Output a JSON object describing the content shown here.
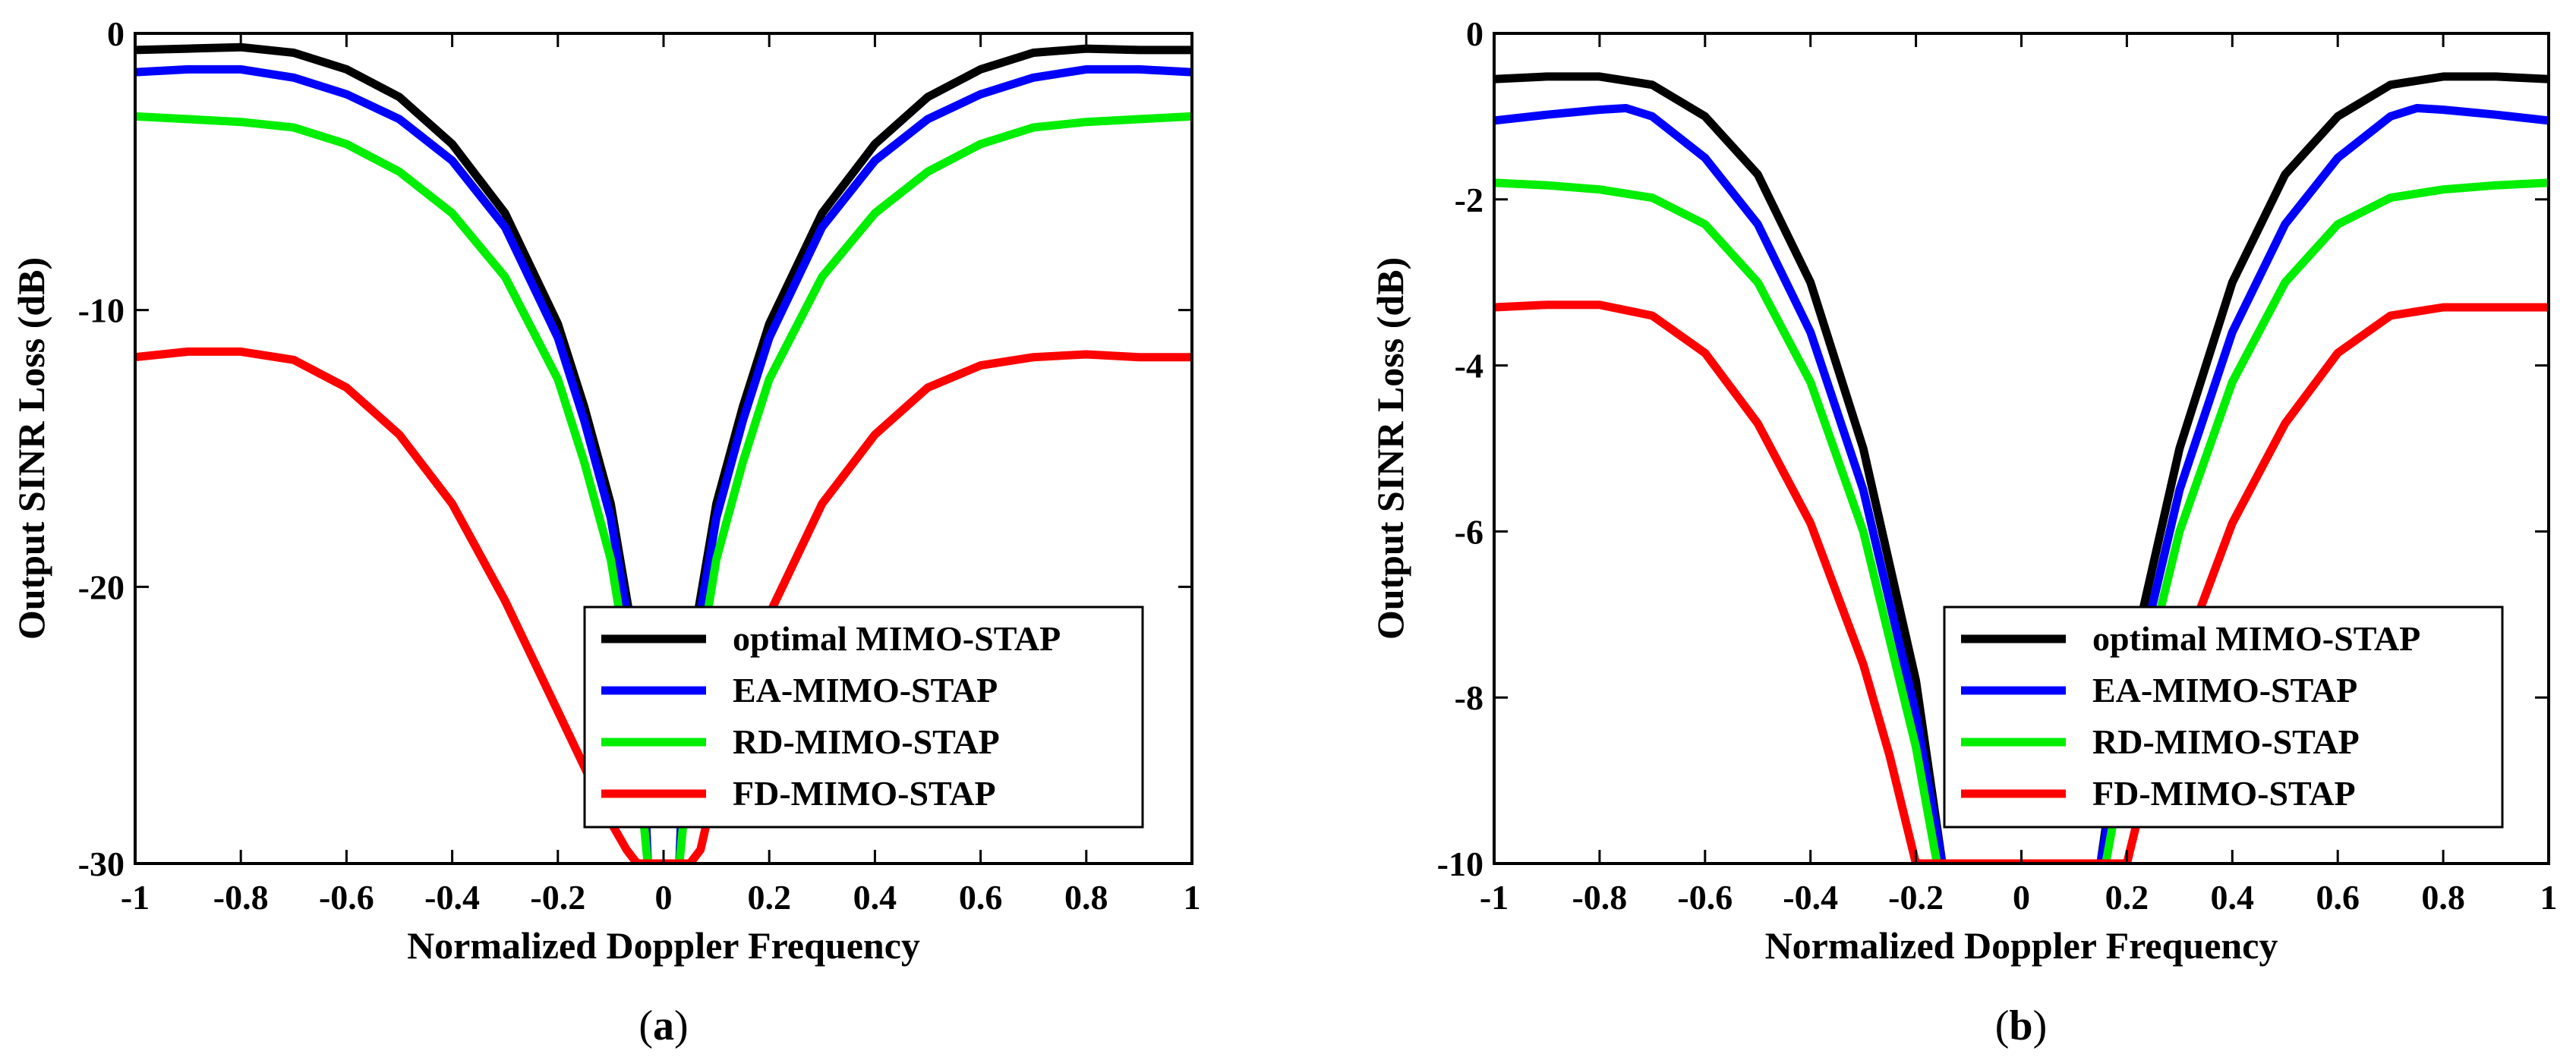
{
  "chart_data": [
    {
      "type": "line",
      "panel_label": "a",
      "xlabel": "Normalized Doppler Frequency",
      "ylabel": "Output SINR Loss (dB)",
      "xlim": [
        -1,
        1
      ],
      "ylim": [
        -30,
        0
      ],
      "xticks": [
        "-1",
        "-0.8",
        "-0.6",
        "-0.4",
        "-0.2",
        "0",
        "0.2",
        "0.4",
        "0.6",
        "0.8",
        "1"
      ],
      "yticks": [
        "-30",
        "-20",
        "-10",
        "0"
      ],
      "legend_position": "bottom-right",
      "series": [
        {
          "name": "optimal MIMO-STAP",
          "color": "#000000",
          "x": [
            -1,
            -0.9,
            -0.8,
            -0.7,
            -0.6,
            -0.5,
            -0.4,
            -0.3,
            -0.2,
            -0.15,
            -0.1,
            -0.06,
            -0.04,
            -0.03,
            0.03,
            0.04,
            0.06,
            0.1,
            0.15,
            0.2,
            0.3,
            0.4,
            0.5,
            0.6,
            0.7,
            0.8,
            0.9,
            1
          ],
          "y": [
            -0.6,
            -0.55,
            -0.5,
            -0.7,
            -1.3,
            -2.3,
            -4.0,
            -6.5,
            -10.5,
            -13.5,
            -17.0,
            -21.5,
            -25.0,
            -30,
            -30,
            -25.0,
            -21.5,
            -17.0,
            -13.5,
            -10.5,
            -6.5,
            -4.0,
            -2.3,
            -1.3,
            -0.7,
            -0.55,
            -0.6,
            -0.6
          ]
        },
        {
          "name": "EA-MIMO-STAP",
          "color": "#0000ff",
          "x": [
            -1,
            -0.9,
            -0.8,
            -0.7,
            -0.6,
            -0.5,
            -0.4,
            -0.3,
            -0.2,
            -0.15,
            -0.1,
            -0.06,
            -0.04,
            -0.03,
            0.03,
            0.04,
            0.06,
            0.1,
            0.15,
            0.2,
            0.3,
            0.4,
            0.5,
            0.6,
            0.7,
            0.8,
            0.9,
            1
          ],
          "y": [
            -1.4,
            -1.3,
            -1.3,
            -1.6,
            -2.2,
            -3.1,
            -4.6,
            -7.0,
            -11.0,
            -14.0,
            -17.5,
            -22.0,
            -25.5,
            -30,
            -30,
            -25.5,
            -22.0,
            -17.5,
            -14.0,
            -11.0,
            -7.0,
            -4.6,
            -3.1,
            -2.2,
            -1.6,
            -1.3,
            -1.3,
            -1.4
          ]
        },
        {
          "name": "RD-MIMO-STAP",
          "color": "#00ee00",
          "x": [
            -1,
            -0.9,
            -0.8,
            -0.7,
            -0.6,
            -0.5,
            -0.4,
            -0.3,
            -0.2,
            -0.15,
            -0.1,
            -0.07,
            -0.05,
            -0.03,
            0.03,
            0.05,
            0.07,
            0.1,
            0.15,
            0.2,
            0.3,
            0.4,
            0.5,
            0.6,
            0.7,
            0.8,
            0.9,
            1
          ],
          "y": [
            -3.0,
            -3.1,
            -3.2,
            -3.4,
            -4.0,
            -5.0,
            -6.5,
            -8.8,
            -12.5,
            -15.5,
            -19.0,
            -22.5,
            -26.0,
            -30,
            -30,
            -26.0,
            -22.5,
            -19.0,
            -15.5,
            -12.5,
            -8.8,
            -6.5,
            -5.0,
            -4.0,
            -3.4,
            -3.2,
            -3.1,
            -3.0
          ]
        },
        {
          "name": "FD-MIMO-STAP",
          "color": "#ff0000",
          "x": [
            -1,
            -0.9,
            -0.8,
            -0.7,
            -0.6,
            -0.5,
            -0.4,
            -0.3,
            -0.2,
            -0.15,
            -0.1,
            -0.07,
            -0.05,
            0.05,
            0.07,
            0.1,
            0.15,
            0.2,
            0.3,
            0.4,
            0.5,
            0.6,
            0.7,
            0.8,
            0.9,
            1
          ],
          "y": [
            -11.7,
            -11.5,
            -11.5,
            -11.8,
            -12.8,
            -14.5,
            -17.0,
            -20.5,
            -24.5,
            -26.5,
            -28.5,
            -29.5,
            -30,
            -30,
            -29.5,
            -27.0,
            -24.0,
            -21.0,
            -17.0,
            -14.5,
            -12.8,
            -12.0,
            -11.7,
            -11.6,
            -11.7,
            -11.7
          ]
        }
      ]
    },
    {
      "type": "line",
      "panel_label": "b",
      "xlabel": "Normalized Doppler Frequency",
      "ylabel": "Output SINR Loss (dB)",
      "xlim": [
        -1,
        1
      ],
      "ylim": [
        -10,
        0
      ],
      "xticks": [
        "-1",
        "-0.8",
        "-0.6",
        "-0.4",
        "-0.2",
        "0",
        "0.2",
        "0.4",
        "0.6",
        "0.8",
        "1"
      ],
      "yticks": [
        "-10",
        "-8",
        "-6",
        "-4",
        "-2",
        "0"
      ],
      "legend_position": "bottom-right",
      "series": [
        {
          "name": "optimal MIMO-STAP",
          "color": "#000000",
          "x": [
            -1,
            -0.9,
            -0.8,
            -0.7,
            -0.6,
            -0.5,
            -0.4,
            -0.3,
            -0.2,
            -0.15,
            0.15,
            0.2,
            0.3,
            0.4,
            0.5,
            0.6,
            0.7,
            0.8,
            0.9,
            1
          ],
          "y": [
            -0.55,
            -0.52,
            -0.52,
            -0.62,
            -1.0,
            -1.7,
            -3.0,
            -5.0,
            -7.8,
            -10.0,
            -10.0,
            -7.8,
            -5.0,
            -3.0,
            -1.7,
            -1.0,
            -0.62,
            -0.52,
            -0.52,
            -0.55
          ]
        },
        {
          "name": "EA-MIMO-STAP",
          "color": "#0000ff",
          "x": [
            -1,
            -0.9,
            -0.8,
            -0.75,
            -0.7,
            -0.6,
            -0.5,
            -0.4,
            -0.3,
            -0.2,
            -0.15,
            0.15,
            0.2,
            0.3,
            0.4,
            0.5,
            0.6,
            0.7,
            0.75,
            0.8,
            0.9,
            1
          ],
          "y": [
            -1.05,
            -0.98,
            -0.92,
            -0.9,
            -1.0,
            -1.5,
            -2.3,
            -3.6,
            -5.5,
            -8.2,
            -10.0,
            -10.0,
            -8.2,
            -5.5,
            -3.6,
            -2.3,
            -1.5,
            -1.0,
            -0.9,
            -0.92,
            -0.98,
            -1.05
          ]
        },
        {
          "name": "RD-MIMO-STAP",
          "color": "#00ee00",
          "x": [
            -1,
            -0.9,
            -0.8,
            -0.7,
            -0.6,
            -0.5,
            -0.4,
            -0.3,
            -0.2,
            -0.16,
            0.16,
            0.2,
            0.3,
            0.4,
            0.5,
            0.6,
            0.7,
            0.8,
            0.9,
            1
          ],
          "y": [
            -1.8,
            -1.83,
            -1.88,
            -1.98,
            -2.3,
            -3.0,
            -4.2,
            -6.0,
            -8.6,
            -10.0,
            -10.0,
            -8.6,
            -6.0,
            -4.2,
            -3.0,
            -2.3,
            -1.98,
            -1.88,
            -1.83,
            -1.8
          ]
        },
        {
          "name": "FD-MIMO-STAP",
          "color": "#ff0000",
          "x": [
            -1,
            -0.9,
            -0.8,
            -0.7,
            -0.6,
            -0.5,
            -0.4,
            -0.3,
            -0.25,
            -0.2,
            0.2,
            0.25,
            0.3,
            0.4,
            0.5,
            0.6,
            0.7,
            0.8,
            0.9,
            1
          ],
          "y": [
            -3.3,
            -3.27,
            -3.27,
            -3.4,
            -3.85,
            -4.7,
            -5.9,
            -7.6,
            -8.7,
            -10.0,
            -10.0,
            -8.7,
            -7.6,
            -5.9,
            -4.7,
            -3.85,
            -3.4,
            -3.3,
            -3.3,
            -3.3
          ]
        }
      ]
    }
  ]
}
